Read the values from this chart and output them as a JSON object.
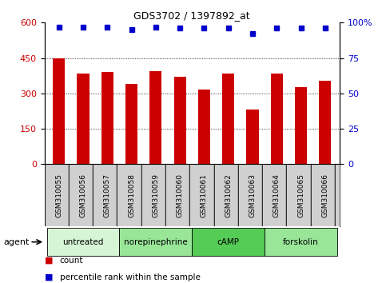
{
  "title": "GDS3702 / 1397892_at",
  "samples": [
    "GSM310055",
    "GSM310056",
    "GSM310057",
    "GSM310058",
    "GSM310059",
    "GSM310060",
    "GSM310061",
    "GSM310062",
    "GSM310063",
    "GSM310064",
    "GSM310065",
    "GSM310066"
  ],
  "counts": [
    450,
    385,
    390,
    340,
    395,
    370,
    315,
    385,
    230,
    385,
    325,
    355
  ],
  "percentile_ranks": [
    97,
    97,
    97,
    95,
    97,
    96,
    96,
    96,
    92,
    96,
    96,
    96
  ],
  "bar_color": "#cc0000",
  "dot_color": "#0000cc",
  "left_ylim": [
    0,
    600
  ],
  "left_yticks": [
    0,
    150,
    300,
    450,
    600
  ],
  "left_yticklabels": [
    "0",
    "150",
    "300",
    "450",
    "600"
  ],
  "right_ylim": [
    0,
    100
  ],
  "right_yticks": [
    0,
    25,
    50,
    75,
    100
  ],
  "right_yticklabels": [
    "0",
    "25",
    "50",
    "75",
    "100%"
  ],
  "groups": [
    {
      "label": "untreated",
      "start": 0,
      "end": 2,
      "color": "#d6f5d6"
    },
    {
      "label": "norepinephrine",
      "start": 3,
      "end": 5,
      "color": "#99e699"
    },
    {
      "label": "cAMP",
      "start": 6,
      "end": 8,
      "color": "#55cc55"
    },
    {
      "label": "forskolin",
      "start": 9,
      "end": 11,
      "color": "#99e699"
    }
  ],
  "sample_bg_color": "#d0d0d0",
  "plot_bg_color": "#ffffff",
  "agent_label": "agent",
  "legend_count_label": "count",
  "legend_pct_label": "percentile rank within the sample",
  "dotted_line_color": "#000000",
  "bar_width": 0.5
}
